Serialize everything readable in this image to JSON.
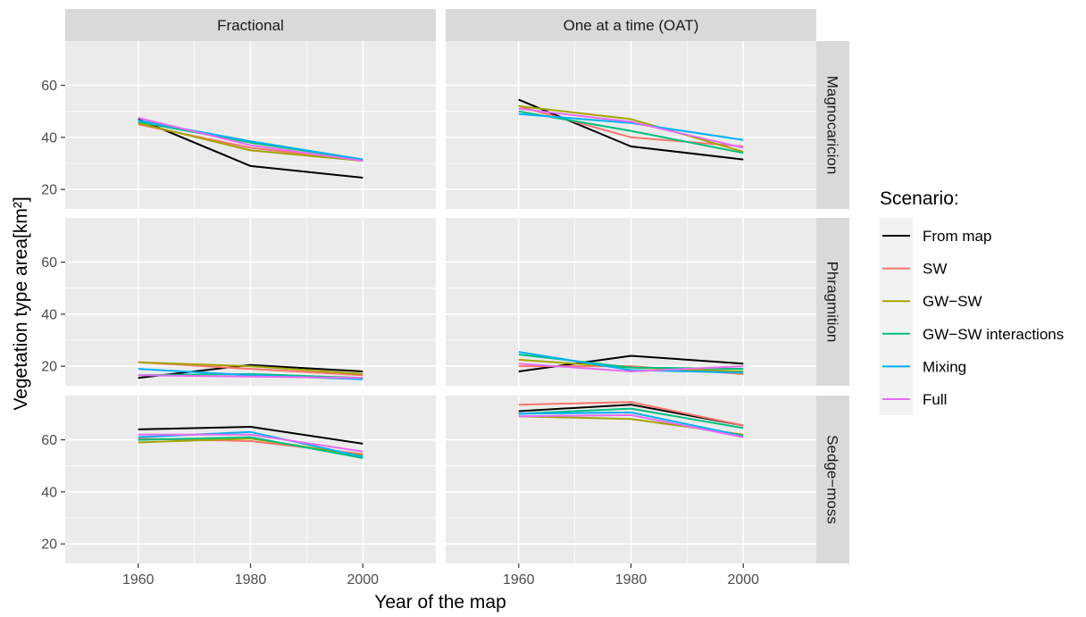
{
  "chart_data": {
    "type": "line",
    "xlabel": "Year of the map",
    "ylabel": "Vegetation type area[km²]",
    "xlim": [
      1947,
      2013
    ],
    "ylim": [
      12.5,
      77
    ],
    "x_ticks": [
      1960,
      1980,
      2000
    ],
    "y_ticks": [
      20,
      40,
      60
    ],
    "grid": true,
    "legend_position": "right",
    "col_facets": [
      "Fractional",
      "One at a time (OAT)"
    ],
    "row_facets": [
      "Magnocaricion",
      "Phragmition",
      "Sedge−moss"
    ],
    "legend": {
      "title": "Scenario:",
      "items": [
        {
          "name": "From map",
          "color": "#000000"
        },
        {
          "name": "SW",
          "color": "#F8766D"
        },
        {
          "name": "GW−SW",
          "color": "#A3A500"
        },
        {
          "name": "GW−SW interactions",
          "color": "#00BF7D"
        },
        {
          "name": "Mixing",
          "color": "#00B0F6"
        },
        {
          "name": "Full",
          "color": "#E76BF3"
        }
      ]
    },
    "x": [
      1960,
      1980,
      2000
    ],
    "panels": [
      {
        "row": 0,
        "col": 0,
        "series": [
          {
            "name": "From map",
            "values": [
              47.0,
              29.0,
              24.5
            ]
          },
          {
            "name": "SW",
            "values": [
              45.0,
              36.0,
              31.0
            ]
          },
          {
            "name": "GW−SW",
            "values": [
              45.5,
              35.0,
              31.0
            ]
          },
          {
            "name": "GW−SW interactions",
            "values": [
              46.0,
              38.0,
              31.5
            ]
          },
          {
            "name": "Mixing",
            "values": [
              46.5,
              38.5,
              31.5
            ]
          },
          {
            "name": "Full",
            "values": [
              47.5,
              37.0,
              31.0
            ]
          }
        ]
      },
      {
        "row": 0,
        "col": 1,
        "series": [
          {
            "name": "From map",
            "values": [
              54.5,
              36.5,
              31.5
            ]
          },
          {
            "name": "SW",
            "values": [
              52.0,
              40.0,
              36.5
            ]
          },
          {
            "name": "GW−SW",
            "values": [
              52.0,
              47.0,
              34.5
            ]
          },
          {
            "name": "GW−SW interactions",
            "values": [
              50.0,
              42.5,
              34.0
            ]
          },
          {
            "name": "Mixing",
            "values": [
              49.0,
              45.5,
              39.0
            ]
          },
          {
            "name": "Full",
            "values": [
              51.0,
              46.0,
              36.0
            ]
          }
        ]
      },
      {
        "row": 1,
        "col": 0,
        "series": [
          {
            "name": "From map",
            "values": [
              15.5,
              20.5,
              18.0
            ]
          },
          {
            "name": "SW",
            "values": [
              21.5,
              19.0,
              16.5
            ]
          },
          {
            "name": "GW−SW",
            "values": [
              21.5,
              20.0,
              17.0
            ]
          },
          {
            "name": "GW−SW interactions",
            "values": [
              16.5,
              17.0,
              15.5
            ]
          },
          {
            "name": "Mixing",
            "values": [
              19.0,
              16.5,
              15.0
            ]
          },
          {
            "name": "Full",
            "values": [
              16.5,
              16.0,
              15.5
            ]
          }
        ]
      },
      {
        "row": 1,
        "col": 1,
        "series": [
          {
            "name": "From map",
            "values": [
              18.0,
              24.0,
              21.0
            ]
          },
          {
            "name": "SW",
            "values": [
              20.0,
              20.0,
              17.0
            ]
          },
          {
            "name": "GW−SW",
            "values": [
              22.5,
              19.5,
              18.0
            ]
          },
          {
            "name": "GW−SW interactions",
            "values": [
              24.5,
              19.5,
              19.0
            ]
          },
          {
            "name": "Mixing",
            "values": [
              25.5,
              18.5,
              17.5
            ]
          },
          {
            "name": "Full",
            "values": [
              21.0,
              18.0,
              20.0
            ]
          }
        ]
      },
      {
        "row": 2,
        "col": 0,
        "series": [
          {
            "name": "From map",
            "values": [
              64.0,
              65.0,
              58.5
            ]
          },
          {
            "name": "SW",
            "values": [
              60.5,
              59.5,
              54.5
            ]
          },
          {
            "name": "GW−SW",
            "values": [
              59.0,
              60.5,
              54.0
            ]
          },
          {
            "name": "GW−SW interactions",
            "values": [
              60.0,
              61.0,
              53.0
            ]
          },
          {
            "name": "Mixing",
            "values": [
              61.0,
              63.0,
              53.5
            ]
          },
          {
            "name": "Full",
            "values": [
              62.0,
              62.0,
              55.5
            ]
          }
        ]
      },
      {
        "row": 2,
        "col": 1,
        "series": [
          {
            "name": "From map",
            "values": [
              71.0,
              73.5,
              65.5
            ]
          },
          {
            "name": "SW",
            "values": [
              73.5,
              74.5,
              65.5
            ]
          },
          {
            "name": "GW−SW",
            "values": [
              69.0,
              68.0,
              62.0
            ]
          },
          {
            "name": "GW−SW interactions",
            "values": [
              70.0,
              72.0,
              64.5
            ]
          },
          {
            "name": "Mixing",
            "values": [
              70.0,
              70.5,
              61.5
            ]
          },
          {
            "name": "Full",
            "values": [
              69.0,
              69.5,
              61.0
            ]
          }
        ]
      }
    ]
  }
}
